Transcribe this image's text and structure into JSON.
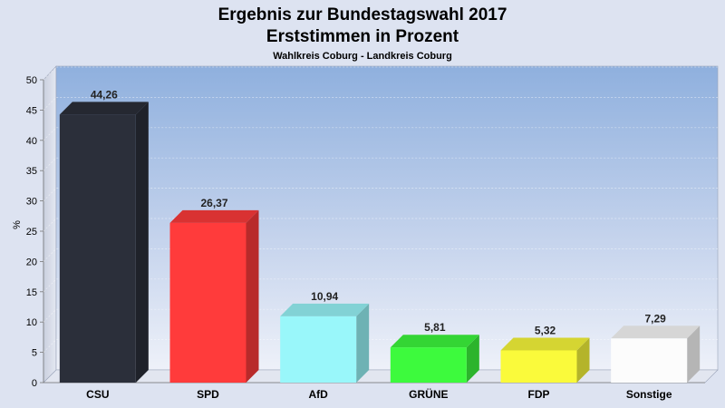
{
  "chart_data": {
    "type": "bar",
    "title": "Ergebnis zur Bundestagswahl 2017",
    "subtitle": "Erststimmen in Prozent",
    "subtitle2": "Wahlkreis Coburg - Landkreis Coburg",
    "xlabel": "",
    "ylabel": "%",
    "ylim": [
      0,
      50
    ],
    "yticks": [
      "0",
      "5",
      "10",
      "15",
      "20",
      "25",
      "30",
      "35",
      "40",
      "45",
      "50"
    ],
    "grid": true,
    "categories": [
      "CSU",
      "SPD",
      "AfD",
      "GRÜNE",
      "FDP",
      "Sonstige"
    ],
    "values": [
      44.26,
      26.37,
      10.94,
      5.81,
      5.32,
      7.29
    ],
    "value_labels": [
      "44,26",
      "26,37",
      "10,94",
      "5,81",
      "5,32",
      "7,29"
    ],
    "colors": [
      "#2b2f3a",
      "#ff3b3b",
      "#99f7fa",
      "#3dfa3d",
      "#fafa3b",
      "#fcfcfc"
    ]
  }
}
